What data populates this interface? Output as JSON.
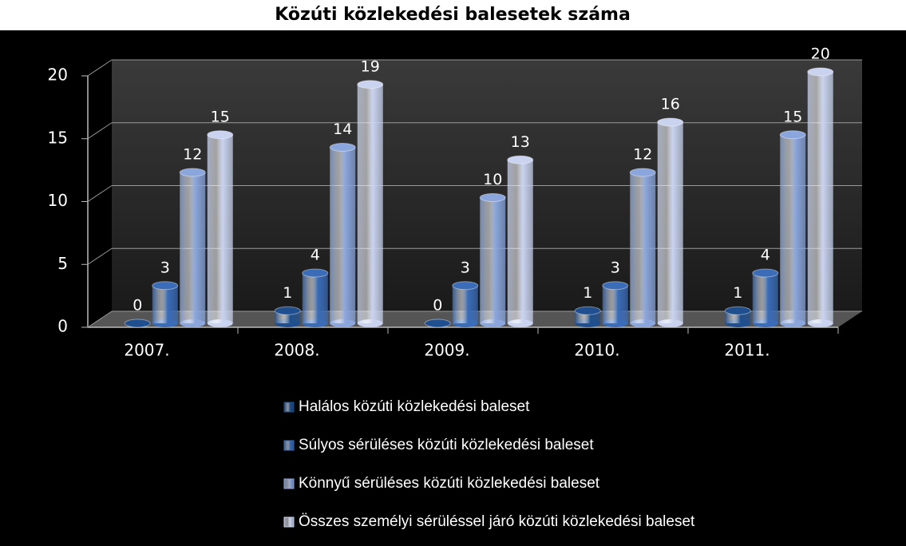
{
  "chart_data": {
    "type": "bar",
    "title": "Közúti közlekedési balesetek száma",
    "categories": [
      "2007.",
      "2008.",
      "2009.",
      "2010.",
      "2011."
    ],
    "series": [
      {
        "name": "Halálos közúti közlekedési baleset",
        "color": "#1f4f8f",
        "values": [
          0,
          1,
          0,
          1,
          1
        ]
      },
      {
        "name": "Súlyos sérüléses közúti közlekedési baleset",
        "color": "#3a6cb8",
        "values": [
          3,
          4,
          3,
          3,
          4
        ]
      },
      {
        "name": "Könnyű sérüléses közúti közlekedési baleset",
        "color": "#8aa6dc",
        "values": [
          12,
          14,
          10,
          12,
          15
        ]
      },
      {
        "name": "Összes személyi sérüléssel járó közúti közlekedési baleset",
        "color": "#c9d3ef",
        "values": [
          15,
          19,
          13,
          16,
          20
        ]
      }
    ],
    "ylim": [
      0,
      20
    ],
    "yticks": [
      0,
      5,
      10,
      15,
      20
    ],
    "grid": true,
    "legend": "bottom"
  }
}
